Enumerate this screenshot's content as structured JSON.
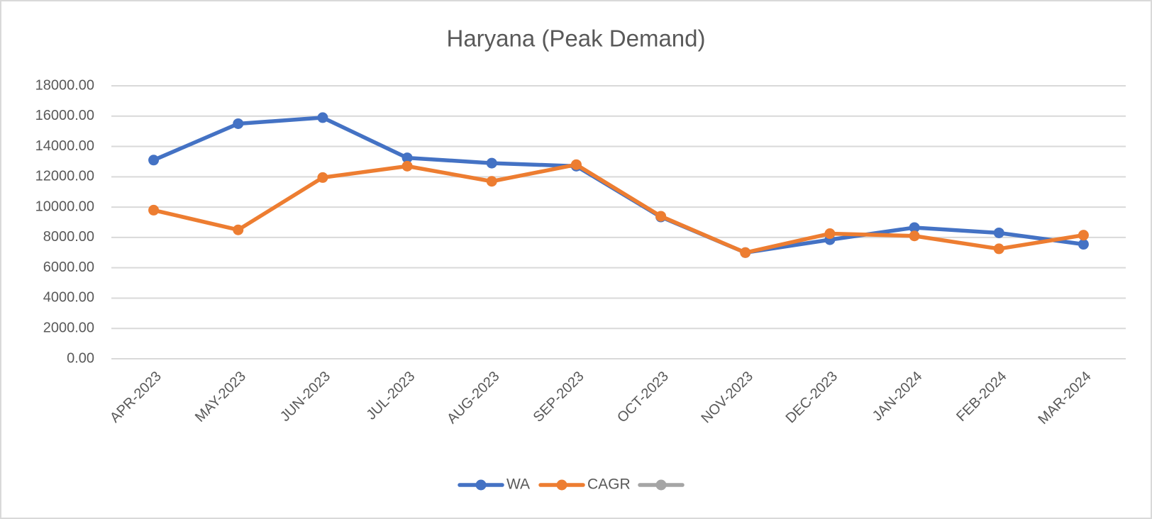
{
  "chart_data": {
    "type": "line",
    "title": "Haryana (Peak Demand)",
    "categories": [
      "APR-2023",
      "MAY-2023",
      "JUN-2023",
      "JUL-2023",
      "AUG-2023",
      "SEP-2023",
      "OCT-2023",
      "NOV-2023",
      "DEC-2023",
      "JAN-2024",
      "FEB-2024",
      "MAR-2024"
    ],
    "series": [
      {
        "name": "WA",
        "color": "#4472c4",
        "values": [
          13100,
          15500,
          15900,
          13250,
          12900,
          12700,
          9350,
          7000,
          7850,
          8650,
          8300,
          7550
        ]
      },
      {
        "name": "CAGR",
        "color": "#ed7d31",
        "values": [
          9800,
          8500,
          11950,
          12700,
          11700,
          12800,
          9400,
          7000,
          8250,
          8100,
          7250,
          8150
        ]
      },
      {
        "name": null,
        "color": "#a5a5a5",
        "values": [
          null,
          null,
          null,
          null,
          null,
          null,
          null,
          null,
          null,
          null,
          null,
          null
        ]
      }
    ],
    "ylim": [
      0,
      18000
    ],
    "yticks": [
      {
        "value": 0,
        "label": "0.00"
      },
      {
        "value": 2000,
        "label": "2000.00"
      },
      {
        "value": 4000,
        "label": "4000.00"
      },
      {
        "value": 6000,
        "label": "6000.00"
      },
      {
        "value": 8000,
        "label": "8000.00"
      },
      {
        "value": 10000,
        "label": "10000.00"
      },
      {
        "value": 12000,
        "label": "12000.00"
      },
      {
        "value": 14000,
        "label": "14000.00"
      },
      {
        "value": 16000,
        "label": "16000.00"
      },
      {
        "value": 18000,
        "label": "18000.00"
      }
    ],
    "grid": true,
    "legend": "bottom"
  }
}
